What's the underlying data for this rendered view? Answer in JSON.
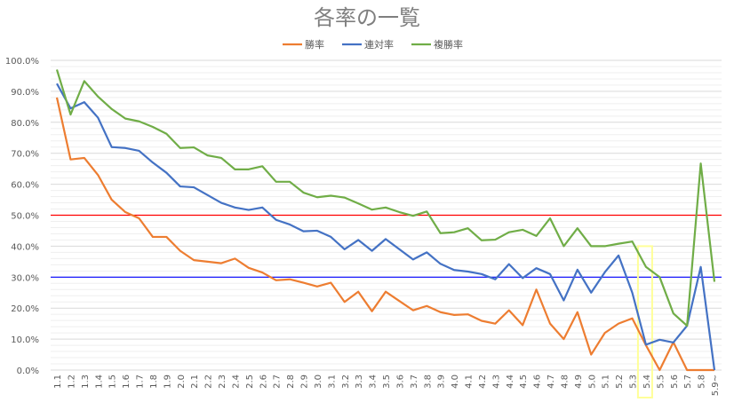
{
  "chart_data": {
    "type": "line",
    "title": "各率の一覧",
    "xlabel": "",
    "ylabel": "",
    "ylim": [
      0,
      100
    ],
    "y_ticks": [
      "0.0%",
      "10.0%",
      "20.0%",
      "30.0%",
      "40.0%",
      "50.0%",
      "60.0%",
      "70.0%",
      "80.0%",
      "90.0%",
      "100.0%"
    ],
    "grid": true,
    "legend_position": "top",
    "categories": [
      "1.1",
      "1.2",
      "1.3",
      "1.4",
      "1.5",
      "1.6",
      "1.7",
      "1.8",
      "1.9",
      "2.0",
      "2.1",
      "2.2",
      "2.3",
      "2.4",
      "2.5",
      "2.6",
      "2.7",
      "2.8",
      "2.9",
      "3.0",
      "3.1",
      "3.2",
      "3.3",
      "3.4",
      "3.5",
      "3.6",
      "3.7",
      "3.8",
      "3.9",
      "4.0",
      "4.1",
      "4.2",
      "4.3",
      "4.4",
      "4.5",
      "4.6",
      "4.7",
      "4.8",
      "4.9",
      "5.0",
      "5.1",
      "5.2",
      "5.3",
      "5.4",
      "5.5",
      "5.6",
      "5.7",
      "5.8",
      "5.9~"
    ],
    "series": [
      {
        "name": "勝率",
        "color": "#ed7d31",
        "values": [
          88,
          68,
          68.5,
          63,
          55,
          51,
          49,
          43,
          43,
          38.5,
          35.5,
          35,
          34.5,
          36,
          33,
          31.5,
          29,
          29.3,
          28.2,
          27,
          28.2,
          22,
          25.3,
          19,
          25.3,
          22.3,
          19.3,
          20.7,
          18.7,
          17.8,
          18,
          15.9,
          15,
          19.3,
          14.5,
          26,
          15,
          10,
          18.7,
          5,
          12,
          15,
          16.7,
          8,
          0,
          9,
          0,
          0,
          0
        ]
      },
      {
        "name": "連対率",
        "color": "#4472c4",
        "values": [
          92.5,
          84.5,
          86.5,
          81.5,
          72,
          71.7,
          70.8,
          67,
          63.7,
          59.3,
          59,
          56.5,
          54,
          52.5,
          51.7,
          52.5,
          48.5,
          47,
          44.8,
          45,
          43,
          39,
          42,
          38.5,
          42.3,
          39,
          35.7,
          38,
          34.3,
          32.3,
          31.8,
          31,
          29.3,
          34.2,
          29.7,
          32.9,
          31,
          22.5,
          32.4,
          25,
          31.6,
          37,
          25,
          8.2,
          9.8,
          8.9,
          14.3,
          33.3,
          0
        ]
      },
      {
        "name": "複勝率",
        "color": "#70ad47",
        "values": [
          97,
          82.5,
          93.3,
          88.3,
          84.3,
          81.2,
          80.3,
          78.5,
          76.3,
          71.7,
          71.9,
          69.3,
          68.5,
          64.8,
          64.8,
          65.8,
          60.8,
          60.8,
          57.3,
          55.8,
          56.3,
          55.7,
          53.8,
          51.8,
          52.5,
          51,
          49.8,
          51.2,
          44.2,
          44.5,
          45.8,
          41.9,
          42.1,
          44.5,
          45.3,
          43.3,
          49,
          40,
          45.8,
          40,
          40,
          40.8,
          41.5,
          33.3,
          30,
          18.3,
          14.3,
          66.7,
          28.5
        ]
      }
    ],
    "reference_lines": [
      {
        "value": 50,
        "color": "#ff0000"
      },
      {
        "value": 30,
        "color": "#0000ff"
      }
    ],
    "highlight_category": "5.4",
    "highlight_color": "#ffff99"
  }
}
